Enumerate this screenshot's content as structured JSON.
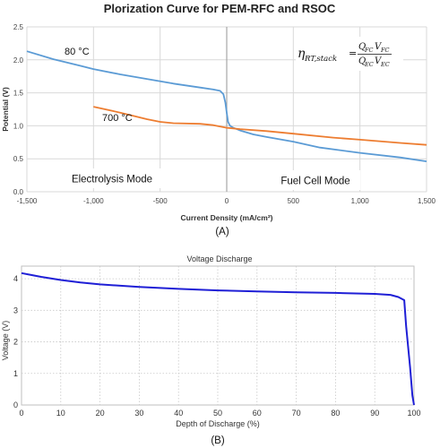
{
  "chart_data": [
    {
      "type": "line",
      "title": "Plorization Curve for PEM-RFC and RSOC",
      "xlabel": "Current Density (mA/cm²)",
      "ylabel": "Potential (V)",
      "xlim": [
        -1500,
        1500
      ],
      "ylim": [
        0,
        2.5
      ],
      "x_ticks": [
        "-1,500",
        "-1,000",
        "-500",
        "0",
        "500",
        "1,000",
        "1,500"
      ],
      "y_ticks": [
        "0.0",
        "0.5",
        "1.0",
        "1.5",
        "2.0",
        "2.5"
      ],
      "grid": true,
      "series": [
        {
          "name": "80 °C",
          "color": "#5b9bd5",
          "points": [
            [
              -1500,
              2.13
            ],
            [
              -1300,
              2.01
            ],
            [
              -1100,
              1.91
            ],
            [
              -1000,
              1.86
            ],
            [
              -800,
              1.78
            ],
            [
              -600,
              1.71
            ],
            [
              -400,
              1.64
            ],
            [
              -200,
              1.58
            ],
            [
              -100,
              1.55
            ],
            [
              -50,
              1.53
            ],
            [
              -25,
              1.48
            ],
            [
              -10,
              1.35
            ],
            [
              0,
              1.2
            ],
            [
              10,
              1.06
            ],
            [
              25,
              1.0
            ],
            [
              50,
              0.97
            ],
            [
              100,
              0.93
            ],
            [
              200,
              0.87
            ],
            [
              300,
              0.83
            ],
            [
              500,
              0.76
            ],
            [
              700,
              0.67
            ],
            [
              1000,
              0.59
            ],
            [
              1300,
              0.52
            ],
            [
              1500,
              0.46
            ]
          ]
        },
        {
          "name": "700 °C",
          "color": "#ed7d31",
          "points": [
            [
              -1000,
              1.29
            ],
            [
              -800,
              1.2
            ],
            [
              -600,
              1.1
            ],
            [
              -500,
              1.06
            ],
            [
              -400,
              1.04
            ],
            [
              -200,
              1.03
            ],
            [
              -100,
              1.01
            ],
            [
              0,
              0.97
            ],
            [
              100,
              0.95
            ],
            [
              300,
              0.92
            ],
            [
              500,
              0.88
            ],
            [
              800,
              0.82
            ],
            [
              1000,
              0.79
            ],
            [
              1300,
              0.74
            ],
            [
              1500,
              0.71
            ]
          ]
        }
      ],
      "annotations": {
        "label_80": "80 °C",
        "label_700": "700 °C",
        "electrolysis": "Electrolysis Mode",
        "fuelcell": "Fuel Cell Mode",
        "equation": {
          "eta": "η",
          "eta_sub": "RT,stack",
          "eq_sign": "=",
          "num_q": "Q",
          "num_q_sub": "FC",
          "num_v": "V",
          "num_v_sub": "FC",
          "den_q": "Q",
          "den_q_sub": "EC",
          "den_v": "V",
          "den_v_sub": "EC"
        }
      },
      "panel_label": "(A)"
    },
    {
      "type": "line",
      "title": "Voltage Discharge",
      "xlabel": "Depth of Discharge (%)",
      "ylabel": "Voltage (V)",
      "xlim": [
        0,
        100
      ],
      "ylim": [
        0,
        4.4
      ],
      "x_ticks": [
        "0",
        "10",
        "20",
        "30",
        "40",
        "50",
        "60",
        "70",
        "80",
        "90",
        "100"
      ],
      "y_ticks": [
        "0",
        "1",
        "2",
        "3",
        "4"
      ],
      "grid": true,
      "series": [
        {
          "color": "#1f1fd6",
          "points": [
            [
              0,
              4.18
            ],
            [
              2,
              4.13
            ],
            [
              5,
              4.06
            ],
            [
              10,
              3.96
            ],
            [
              15,
              3.88
            ],
            [
              20,
              3.82
            ],
            [
              30,
              3.74
            ],
            [
              40,
              3.68
            ],
            [
              50,
              3.63
            ],
            [
              60,
              3.6
            ],
            [
              70,
              3.57
            ],
            [
              80,
              3.55
            ],
            [
              90,
              3.52
            ],
            [
              94,
              3.49
            ],
            [
              96,
              3.42
            ],
            [
              97.5,
              3.32
            ],
            [
              98,
              2.5
            ],
            [
              99,
              1.2
            ],
            [
              99.6,
              0.3
            ],
            [
              100,
              0
            ]
          ]
        }
      ],
      "panel_label": "(B)"
    }
  ]
}
